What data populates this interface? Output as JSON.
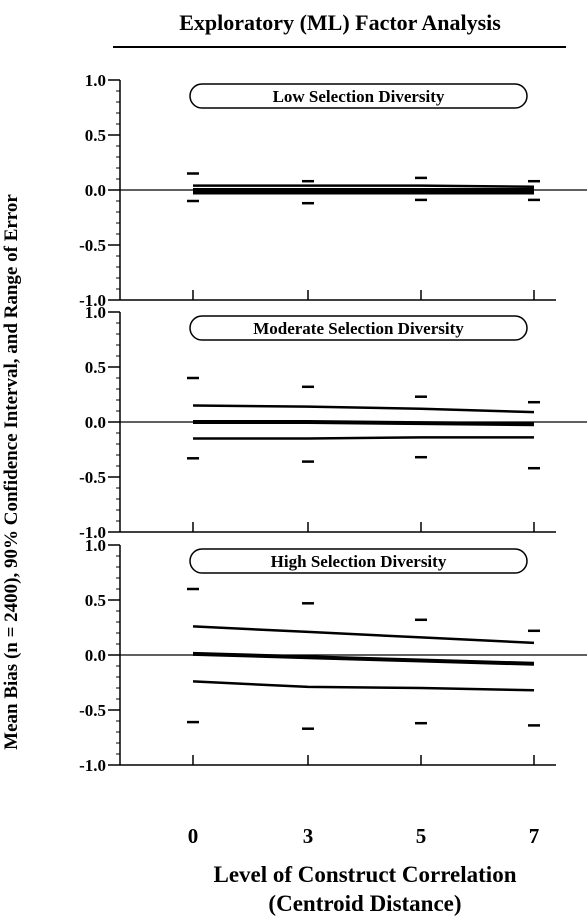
{
  "chart_data": {
    "type": "line",
    "title": "Exploratory (ML) Factor Analysis",
    "ylabel": "Mean Bias (n = 2400), 90% Confidence Interval, and Range of Error",
    "xlabel_line1": "Level of Construct Correlation",
    "xlabel_line2": "(Centroid Distance)",
    "x": [
      0,
      3,
      5,
      7
    ],
    "x_tick_labels": [
      "0",
      "3",
      "5",
      "7"
    ],
    "ylim": [
      -1.0,
      1.0
    ],
    "y_ticks": [
      1.0,
      0.5,
      0.0,
      -0.5,
      -1.0
    ],
    "y_tick_labels": [
      "1.0",
      "0.5",
      "0.0",
      "-0.5",
      "-1.0"
    ],
    "panels": [
      {
        "title": "Low Selection Diversity",
        "mean": [
          0.0,
          0.0,
          0.0,
          0.0
        ],
        "ci_upper": [
          0.04,
          0.04,
          0.04,
          0.03
        ],
        "ci_lower": [
          -0.03,
          -0.03,
          -0.03,
          -0.03
        ],
        "range_max": [
          0.15,
          0.08,
          0.11,
          0.08
        ],
        "range_min": [
          -0.1,
          -0.12,
          -0.09,
          -0.09
        ]
      },
      {
        "title": "Moderate Selection Diversity",
        "mean": [
          0.0,
          0.0,
          -0.01,
          -0.02
        ],
        "ci_upper": [
          0.15,
          0.14,
          0.12,
          0.09
        ],
        "ci_lower": [
          -0.15,
          -0.15,
          -0.14,
          -0.14
        ],
        "range_max": [
          0.4,
          0.32,
          0.23,
          0.18
        ],
        "range_min": [
          -0.33,
          -0.36,
          -0.32,
          -0.42
        ]
      },
      {
        "title": "High Selection Diversity",
        "mean": [
          0.01,
          -0.02,
          -0.05,
          -0.08
        ],
        "ci_upper": [
          0.26,
          0.21,
          0.16,
          0.11
        ],
        "ci_lower": [
          -0.24,
          -0.29,
          -0.3,
          -0.32
        ],
        "range_max": [
          0.6,
          0.47,
          0.32,
          0.22
        ],
        "range_min": [
          -0.61,
          -0.67,
          -0.62,
          -0.64
        ]
      }
    ]
  }
}
